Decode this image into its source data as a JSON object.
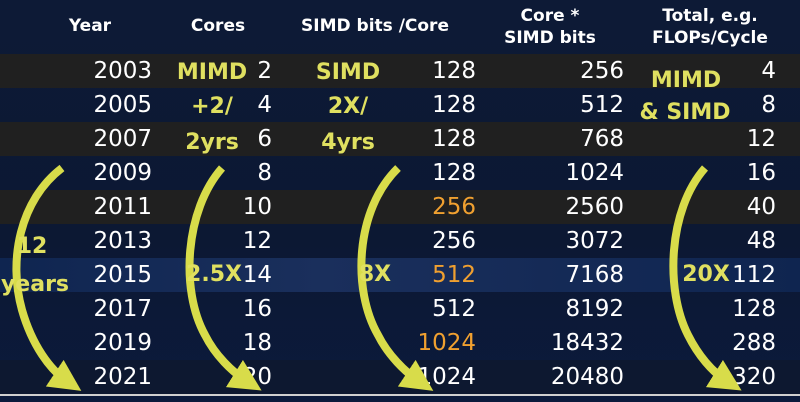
{
  "chart_data": {
    "type": "table",
    "columns": [
      "Year",
      "Cores",
      "SIMD bits /Core",
      "Core * SIMD bits",
      "Total, e.g. FLOPs/Cycle"
    ],
    "header": {
      "year": "Year",
      "cores": "Cores",
      "simd": "SIMD bits /Core",
      "core_simd_line1": "Core *",
      "core_simd_line2": "SIMD bits",
      "total_line1": "Total, e.g.",
      "total_line2": "FLOPs/Cycle"
    },
    "rows": [
      {
        "year": "2003",
        "cores": "2",
        "simd": "128",
        "core_simd": "256",
        "total": "4"
      },
      {
        "year": "2005",
        "cores": "4",
        "simd": "128",
        "core_simd": "512",
        "total": "8"
      },
      {
        "year": "2007",
        "cores": "6",
        "simd": "128",
        "core_simd": "768",
        "total": "12"
      },
      {
        "year": "2009",
        "cores": "8",
        "simd": "128",
        "core_simd": "1024",
        "total": "16"
      },
      {
        "year": "2011",
        "cores": "10",
        "simd": "256",
        "core_simd": "2560",
        "total": "40"
      },
      {
        "year": "2013",
        "cores": "12",
        "simd": "256",
        "core_simd": "3072",
        "total": "48"
      },
      {
        "year": "2015",
        "cores": "14",
        "simd": "512",
        "core_simd": "7168",
        "total": "112"
      },
      {
        "year": "2017",
        "cores": "16",
        "simd": "512",
        "core_simd": "8192",
        "total": "128"
      },
      {
        "year": "2019",
        "cores": "18",
        "simd": "1024",
        "core_simd": "18432",
        "total": "288"
      },
      {
        "year": "2021",
        "cores": "20",
        "simd": "1024",
        "core_simd": "20480",
        "total": "320"
      }
    ],
    "annotations": {
      "mimd_line1": "MIMD",
      "mimd_line2": "+2/",
      "mimd_line3": "2yrs",
      "simd_line1": "SIMD",
      "simd_line2": "2X/",
      "simd_line3": "4yrs",
      "total_line1": "MIMD",
      "total_line2": "& SIMD",
      "years_line1": "12",
      "years_line2": "years",
      "cores_growth": "2.5X",
      "simd_growth": "8X",
      "total_growth": "20X"
    },
    "colors": {
      "highlight": "#f0a030",
      "annotation": "#e0e060",
      "text": "#ffffff"
    }
  }
}
